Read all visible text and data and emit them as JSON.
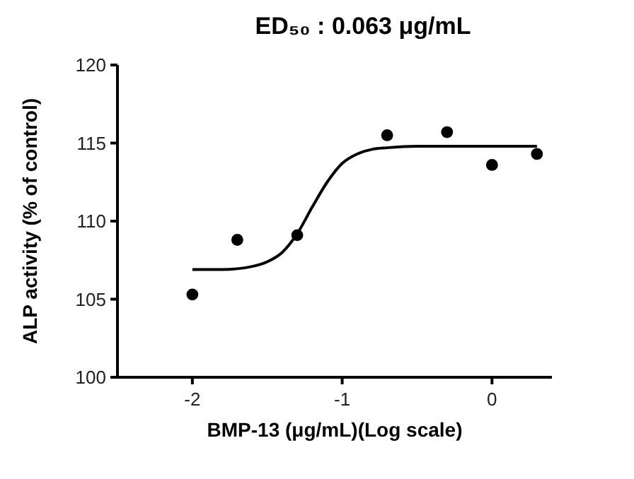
{
  "chart_data": {
    "type": "scatter",
    "title": "ED₅₀ : 0.063 μg/mL",
    "xlabel": "BMP-13 (μg/mL)(Log scale)",
    "ylabel": "ALP activity (% of control)",
    "x": [
      -2,
      -1.7,
      -1.3,
      -0.7,
      -0.3,
      0,
      0.3
    ],
    "xlim": [
      -2.5,
      0.4
    ],
    "xticks": [
      -2,
      -1,
      0
    ],
    "ylim": [
      100,
      120
    ],
    "yticks": [
      100,
      105,
      110,
      115,
      120
    ],
    "grid": false,
    "series": [
      {
        "color": "#000000",
        "marker": "circle",
        "values": [
          105.3,
          108.8,
          109.1,
          115.5,
          115.7,
          113.6,
          114.3
        ]
      },
      {
        "type": "line",
        "color": "#000000",
        "marker": "none",
        "line_style": "solid",
        "x": [
          -2,
          -1.8,
          -1.6,
          -1.5,
          -1.4,
          -1.3,
          -1.2,
          -1.1,
          -1.0,
          -0.9,
          -0.8,
          -0.7,
          -0.5,
          0,
          0.3
        ],
        "values": [
          106.9,
          106.9,
          107.1,
          107.4,
          108.0,
          109.2,
          110.9,
          112.5,
          113.7,
          114.3,
          114.6,
          114.7,
          114.8,
          114.8,
          114.8
        ]
      }
    ]
  }
}
